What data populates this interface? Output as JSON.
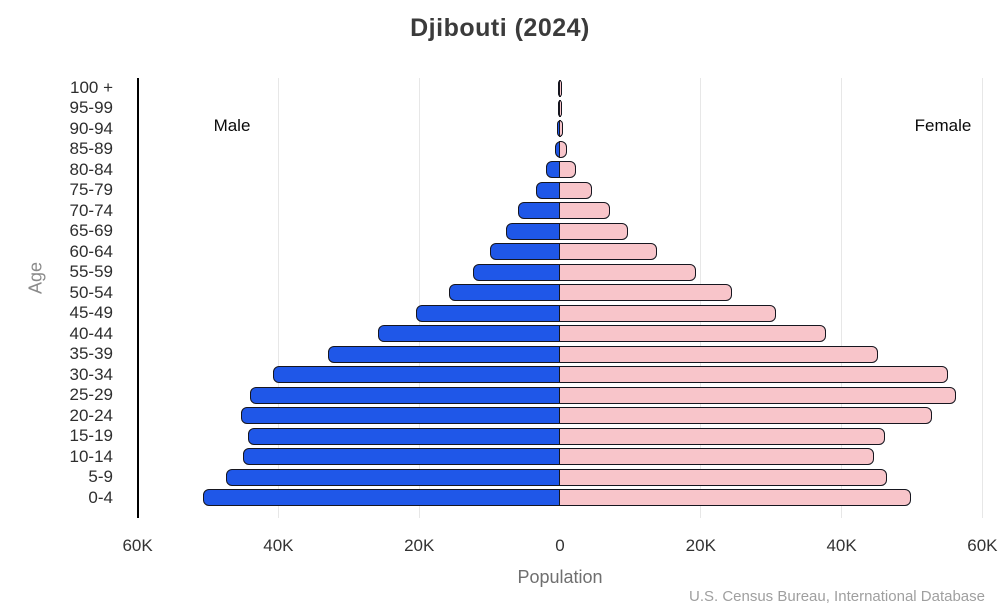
{
  "title": "Djibouti (2024)",
  "annotations": {
    "male_label": "Male",
    "female_label": "Female"
  },
  "axis": {
    "xlabel": "Population",
    "ylabel": "Age"
  },
  "source": "U.S. Census Bureau, International Database",
  "colors": {
    "male_fill": "#1f57e8",
    "female_fill": "#f8c5ca",
    "bar_outline": "#16161f",
    "gridline": "#e7e7e7",
    "spine": "#000000",
    "title_text": "#3b3b3b",
    "tick_text": "#333333",
    "source_text": "#9f9f9f"
  },
  "chart_data": {
    "type": "bar",
    "subtype": "population-pyramid",
    "title": "Djibouti (2024)",
    "xlabel": "Population",
    "ylabel": "Age",
    "xlim": [
      -60000,
      60000
    ],
    "grid": true,
    "legend_position": "inside-top-corners",
    "x_ticks": [
      {
        "value": -60000,
        "label": "60K"
      },
      {
        "value": -40000,
        "label": "40K"
      },
      {
        "value": -20000,
        "label": "20K"
      },
      {
        "value": 0,
        "label": "0"
      },
      {
        "value": 20000,
        "label": "20K"
      },
      {
        "value": 40000,
        "label": "40K"
      },
      {
        "value": 60000,
        "label": "60K"
      }
    ],
    "categories_top_to_bottom": [
      "100 +",
      "95-99",
      "90-94",
      "85-89",
      "80-84",
      "75-79",
      "70-74",
      "65-69",
      "60-64",
      "55-59",
      "50-54",
      "45-49",
      "40-44",
      "35-39",
      "30-34",
      "25-29",
      "20-24",
      "15-19",
      "10-14",
      "5-9",
      "0-4"
    ],
    "series": [
      {
        "name": "Male",
        "side": "left",
        "color": "#1f57e8",
        "values_top_to_bottom": [
          30,
          70,
          150,
          450,
          1800,
          3200,
          5700,
          7400,
          9800,
          12200,
          15500,
          20200,
          25700,
          32700,
          40600,
          43800,
          45100,
          44100,
          44800,
          47200,
          50500
        ]
      },
      {
        "name": "Female",
        "side": "right",
        "color": "#f8c5ca",
        "values_top_to_bottom": [
          50,
          100,
          250,
          850,
          2100,
          4300,
          6900,
          9500,
          13600,
          19100,
          24200,
          30500,
          37500,
          45000,
          54900,
          56000,
          52600,
          46000,
          44400,
          46300,
          49700
        ]
      }
    ]
  }
}
